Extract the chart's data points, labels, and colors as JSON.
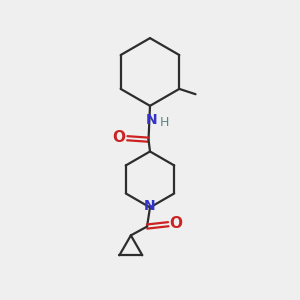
{
  "bg_color": "#efefef",
  "bond_color": "#2d2d2d",
  "nitrogen_color": "#3333cc",
  "oxygen_color": "#cc2222",
  "hydrogen_color": "#558888",
  "line_width": 1.6,
  "fig_size": [
    3.0,
    3.0
  ],
  "dpi": 100,
  "xlim": [
    0,
    10
  ],
  "ylim": [
    0,
    10
  ]
}
